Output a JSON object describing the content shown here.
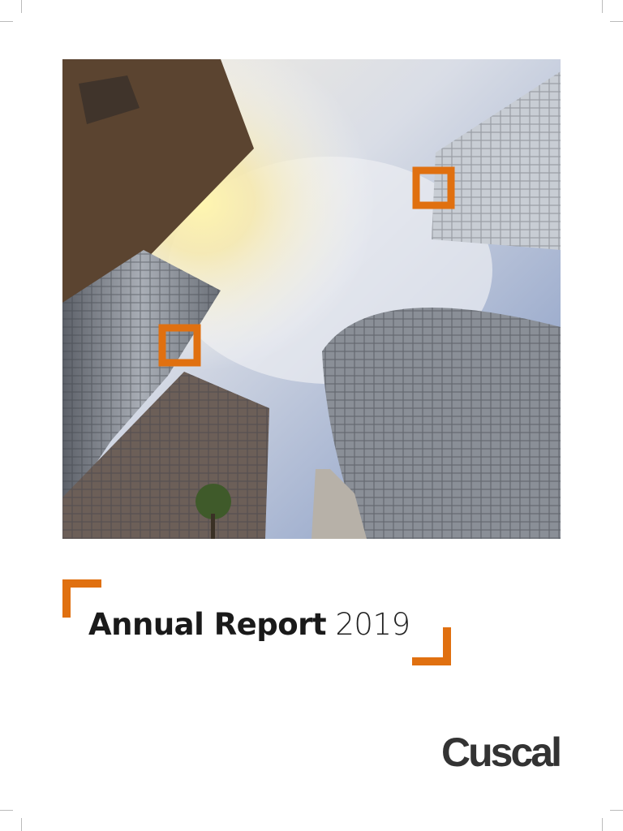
{
  "cover": {
    "title_bold": "Annual Report",
    "title_year": "2019",
    "logo_text": "Cuscal",
    "accent_color": "#e07010",
    "photo": "skyscrapers-looking-up-at-sky"
  }
}
